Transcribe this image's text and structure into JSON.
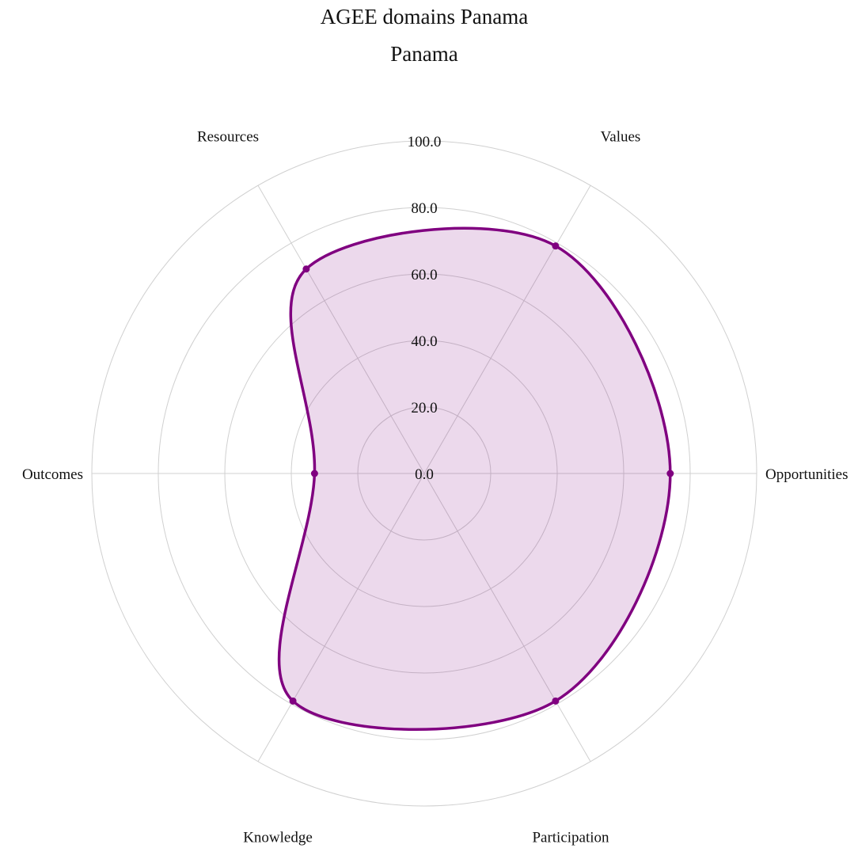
{
  "chart_data": {
    "type": "radar",
    "title": "AGEE domains Panama",
    "subtitle": "Panama",
    "axes": [
      "Values",
      "Opportunities",
      "Participation",
      "Knowledge",
      "Outcomes",
      "Resources"
    ],
    "ticks": [
      "0.0",
      "20.0",
      "40.0",
      "60.0",
      "80.0",
      "100.0"
    ],
    "rlim": [
      0,
      100
    ],
    "series": [
      {
        "values": [
          79,
          74,
          79,
          79,
          33,
          71
        ],
        "color": "#800080",
        "fill": "rgba(128, 0, 128, 0.15)"
      }
    ],
    "grid": true,
    "line_shape": "smooth"
  }
}
